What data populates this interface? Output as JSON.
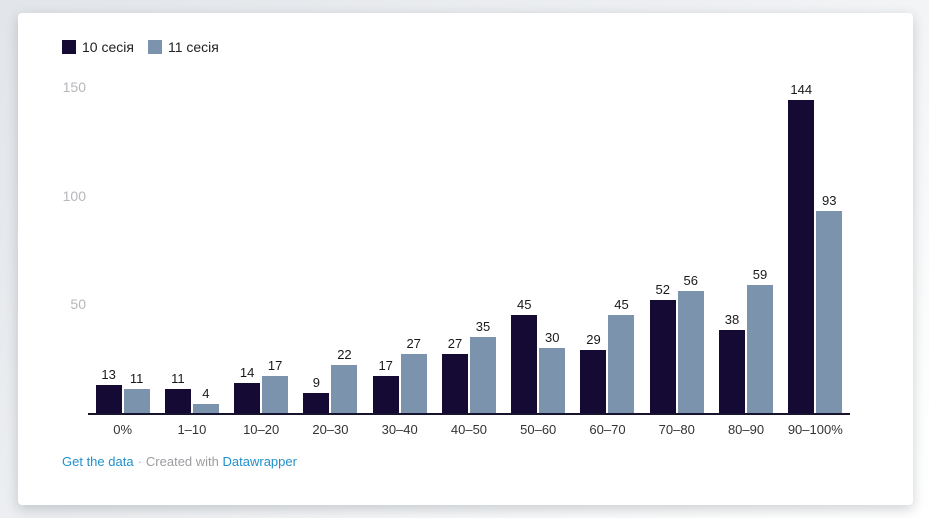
{
  "chart_data": {
    "type": "bar",
    "categories": [
      "0%",
      "1–10",
      "10–20",
      "20–30",
      "30–40",
      "40–50",
      "50–60",
      "60–70",
      "70–80",
      "80–90",
      "90–100%"
    ],
    "series": [
      {
        "name": "10 сесія",
        "color": "#140a33",
        "values": [
          13,
          11,
          14,
          9,
          17,
          27,
          45,
          29,
          52,
          38,
          144
        ]
      },
      {
        "name": "11 сесія",
        "color": "#7b93ad",
        "values": [
          11,
          4,
          17,
          22,
          27,
          35,
          30,
          45,
          56,
          59,
          93
        ]
      }
    ],
    "title": "",
    "xlabel": "",
    "ylabel": "",
    "ylim": [
      0,
      150
    ],
    "yticks": [
      50,
      100,
      150
    ],
    "grid": "off",
    "legend_position": "top-left",
    "value_labels": true
  },
  "footer": {
    "get_data_label": "Get the data",
    "separator": "·",
    "created_with": "Created with",
    "datawrapper_label": "Datawrapper"
  },
  "colors": {
    "series_1": "#140a33",
    "series_2": "#7b93ad",
    "link": "#2191cd",
    "axis_line": "#19142e",
    "ytick_text": "#b5b7ba",
    "xtick_text": "#333333",
    "value_text": "#1a1a1a"
  }
}
